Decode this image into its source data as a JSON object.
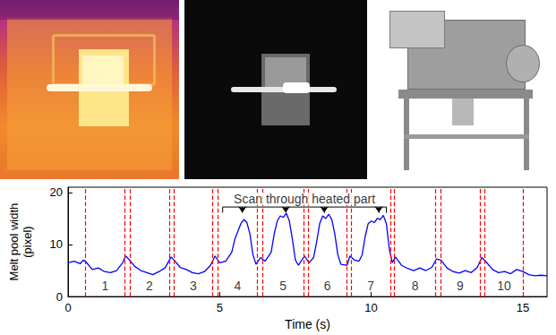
{
  "chart_data": {
    "type": "line",
    "x_label": "Time (s)",
    "y_label": "Melt pool width (pixel)",
    "x": [
      0.0,
      0.2,
      0.4,
      0.5,
      0.6,
      0.8,
      1.0,
      1.2,
      1.4,
      1.6,
      1.8,
      1.9,
      2.0,
      2.2,
      2.4,
      2.6,
      2.8,
      3.0,
      3.2,
      3.4,
      3.5,
      3.7,
      3.9,
      4.1,
      4.3,
      4.5,
      4.7,
      4.85,
      5.0,
      5.2,
      5.4,
      5.5,
      5.6,
      5.7,
      5.8,
      5.9,
      6.0,
      6.1,
      6.2,
      6.35,
      6.5,
      6.7,
      6.8,
      6.9,
      7.0,
      7.1,
      7.2,
      7.3,
      7.4,
      7.5,
      7.6,
      7.8,
      7.95,
      8.1,
      8.2,
      8.3,
      8.4,
      8.5,
      8.6,
      8.7,
      8.8,
      8.9,
      9.0,
      9.2,
      9.3,
      9.45,
      9.6,
      9.7,
      9.8,
      9.9,
      10.0,
      10.1,
      10.2,
      10.3,
      10.4,
      10.5,
      10.6,
      10.7,
      10.8,
      11.0,
      11.2,
      11.4,
      11.6,
      11.8,
      12.0,
      12.15,
      12.3,
      12.5,
      12.7,
      12.9,
      13.1,
      13.3,
      13.5,
      13.65,
      13.8,
      14.0,
      14.2,
      14.4,
      14.6,
      14.8,
      15.0,
      15.2,
      15.4,
      15.6,
      15.8
    ],
    "values": [
      6.5,
      6.8,
      6.3,
      7.0,
      6.6,
      5.2,
      5.5,
      4.8,
      4.6,
      5.0,
      6.5,
      7.8,
      7.2,
      5.8,
      5.0,
      4.6,
      4.2,
      4.8,
      5.5,
      7.6,
      7.0,
      5.6,
      5.2,
      4.6,
      4.4,
      4.8,
      6.0,
      7.8,
      6.5,
      6.8,
      8.5,
      11.0,
      12.5,
      14.0,
      14.8,
      14.2,
      12.0,
      8.0,
      6.2,
      7.5,
      6.8,
      8.5,
      12.0,
      14.5,
      15.5,
      15.2,
      16.0,
      14.5,
      11.0,
      7.0,
      6.0,
      7.8,
      6.5,
      7.5,
      10.5,
      14.0,
      15.5,
      15.0,
      15.8,
      14.8,
      12.0,
      8.0,
      6.2,
      6.0,
      7.8,
      7.0,
      6.8,
      8.0,
      11.5,
      14.0,
      14.5,
      14.2,
      15.0,
      14.8,
      15.6,
      14.0,
      9.0,
      6.5,
      7.6,
      6.0,
      5.4,
      5.0,
      5.5,
      5.0,
      5.6,
      7.2,
      7.0,
      5.5,
      4.8,
      4.5,
      5.0,
      4.6,
      5.6,
      7.5,
      6.6,
      5.2,
      4.6,
      4.8,
      4.4,
      5.2,
      4.8,
      4.2,
      4.0,
      4.1,
      4.0
    ],
    "color": "#0000ff",
    "xlim": [
      0,
      15.8
    ],
    "xticks": [
      0,
      5,
      10,
      15
    ],
    "ylim": [
      0,
      21
    ],
    "yticks": [
      0,
      10,
      20
    ],
    "grid": false,
    "boundaries": {
      "x": [
        0.58,
        1.87,
        2.04,
        3.33,
        3.5,
        4.77,
        4.93,
        6.25,
        6.42,
        7.77,
        7.91,
        9.2,
        9.34,
        10.63,
        10.77,
        12.12,
        12.29,
        13.58,
        13.75,
        15.01
      ],
      "color": "#ff0000",
      "line_style": "dashed"
    },
    "segment_labels": [
      "1",
      "2",
      "3",
      "4",
      "5",
      "6",
      "7",
      "8",
      "9",
      "10"
    ],
    "annotation": {
      "text": "Scan through heated part",
      "x_range": [
        5.1,
        10.5
      ],
      "y": 17.2,
      "arrows": {
        "x": [
          5.75,
          7.18,
          8.45,
          10.25
        ],
        "y_tip": 16.1
      }
    }
  }
}
